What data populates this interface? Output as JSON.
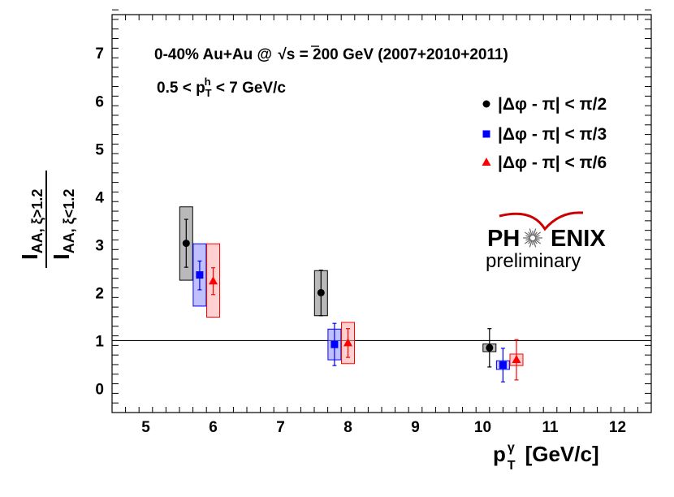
{
  "chart_data": {
    "type": "scatter",
    "title": "0-40% Au+Au @ √s = 200 GeV (2007+2010+2011)",
    "title_parts": {
      "prefix": "0-40% Au+Au @ ",
      "sqrt": "√",
      "rest": "s = 200 GeV (2007+2010+2011)"
    },
    "subtitle": "0.5 < pTh < 7 GeV/c",
    "subtitle_parts": {
      "pre": "0.5 < p",
      "sup": "h",
      "sub": "T",
      "post": " < 7 GeV/c"
    },
    "xlabel": "pTγ [GeV/c]",
    "xlabel_parts": {
      "p": "p",
      "sup": "γ",
      "sub": "T",
      "rest": "[GeV/c]"
    },
    "ylabel": "IAA, ξ>1.2 / IAA, ξ<1.2",
    "ylabel_parts": {
      "num_I": "I",
      "num_sub": "AA, ξ>1.2",
      "den_I": "I",
      "den_sub": "AA, ξ<1.2"
    },
    "xlim": [
      4.5,
      12.5
    ],
    "ylim": [
      -0.5,
      7.8
    ],
    "xticks": [
      5,
      6,
      7,
      8,
      9,
      10,
      11,
      12
    ],
    "yticks": [
      0,
      1,
      2,
      3,
      4,
      5,
      6,
      7
    ],
    "reference_line": 1,
    "series": [
      {
        "name": "|Δφ - π| < π/2",
        "marker": "circle",
        "color": "#000000",
        "fill": "#808080",
        "points": [
          {
            "x": 5.6,
            "y": 3.03,
            "stat_lo": 2.53,
            "stat_hi": 3.53,
            "sys_lo": 2.26,
            "sys_hi": 3.79
          },
          {
            "x": 7.6,
            "y": 2.0,
            "stat_lo": 1.52,
            "stat_hi": 2.47,
            "sys_lo": 1.52,
            "sys_hi": 2.46
          },
          {
            "x": 10.1,
            "y": 0.85,
            "stat_lo": 0.45,
            "stat_hi": 1.25,
            "sys_lo": 0.77,
            "sys_hi": 0.93
          }
        ]
      },
      {
        "name": "|Δφ - π| < π/3",
        "marker": "square",
        "color": "#0000ff",
        "fill": "#8c8cff",
        "points": [
          {
            "x": 5.8,
            "y": 2.37,
            "stat_lo": 2.06,
            "stat_hi": 2.66,
            "sys_lo": 1.72,
            "sys_hi": 3.02
          },
          {
            "x": 7.8,
            "y": 0.92,
            "stat_lo": 0.48,
            "stat_hi": 1.36,
            "sys_lo": 0.6,
            "sys_hi": 1.24
          },
          {
            "x": 10.3,
            "y": 0.49,
            "stat_lo": 0.14,
            "stat_hi": 0.84,
            "sys_lo": 0.4,
            "sys_hi": 0.58
          }
        ]
      },
      {
        "name": "|Δφ - π| < π/6",
        "marker": "triangle",
        "color": "#ff0000",
        "fill": "#ffaaaa",
        "points": [
          {
            "x": 6.0,
            "y": 2.24,
            "stat_lo": 1.96,
            "stat_hi": 2.52,
            "sys_lo": 1.49,
            "sys_hi": 3.02
          },
          {
            "x": 8.0,
            "y": 0.95,
            "stat_lo": 0.65,
            "stat_hi": 1.25,
            "sys_lo": 0.52,
            "sys_hi": 1.38
          },
          {
            "x": 10.5,
            "y": 0.6,
            "stat_lo": 0.18,
            "stat_hi": 1.02,
            "sys_lo": 0.48,
            "sys_hi": 0.72
          }
        ]
      }
    ],
    "legend_position": "top-right",
    "logo": {
      "name": "PHENIX",
      "left": "PH",
      "right": "ENIX",
      "tag": "preliminary"
    }
  }
}
